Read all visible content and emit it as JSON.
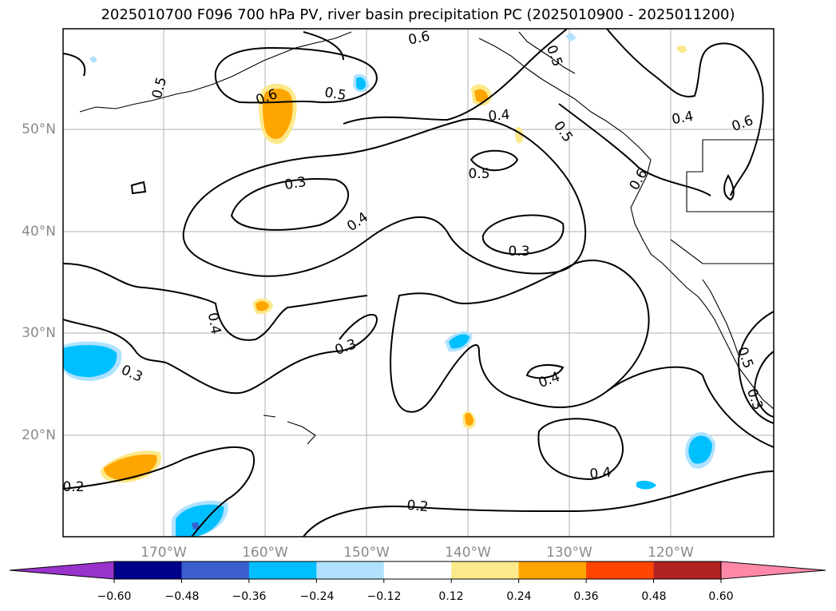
{
  "title": "2025010700 F096 700 hPa PV, river basin precipitation PC (2025010900 - 2025011200)",
  "axes": {
    "lat_ticks": [
      "50°N",
      "40°N",
      "30°N",
      "20°N"
    ],
    "lon_ticks": [
      "170°W",
      "160°W",
      "150°W",
      "140°W",
      "130°W",
      "120°W"
    ]
  },
  "contour_labels": [
    "0.6",
    "0.5",
    "0.6",
    "0.5",
    "0.5",
    "0.4",
    "0.5",
    "0.4",
    "0.6",
    "0.5",
    "0.6",
    "0.3",
    "0.4",
    "0.3",
    "0.4",
    "0.3",
    "0.3",
    "0.4",
    "0.4",
    "0.2",
    "0.2",
    "0.5",
    "0.3"
  ],
  "colorbar": {
    "tick_labels": [
      "−0.60",
      "−0.48",
      "−0.36",
      "−0.24",
      "−0.12",
      "0.12",
      "0.24",
      "0.36",
      "0.48",
      "0.60"
    ],
    "colors": [
      "#9933cc",
      "#00008b",
      "#3a5fcd",
      "#00bfff",
      "#b0e2ff",
      "#ffffff",
      "#fce98b",
      "#ffa500",
      "#ff4500",
      "#b22222",
      "#ff88a8"
    ]
  }
}
